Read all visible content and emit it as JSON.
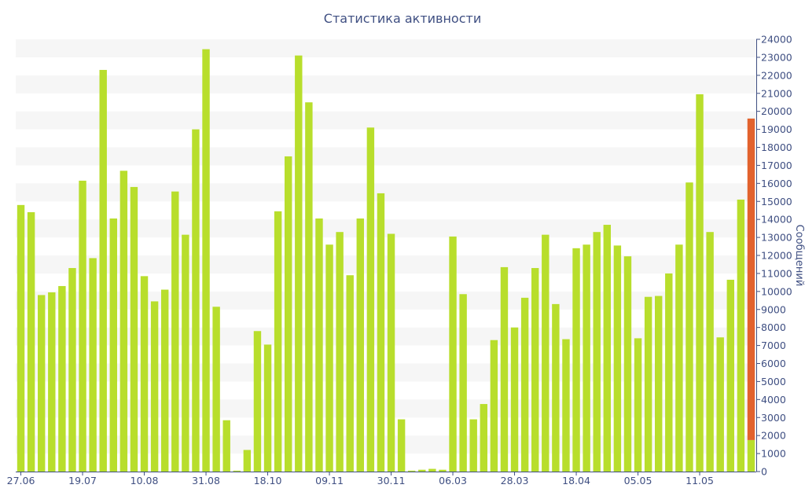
{
  "chart_data": {
    "type": "bar",
    "title": "Статистика активности",
    "xlabel": "",
    "ylabel": "Сообщений",
    "ylim": [
      0,
      24000
    ],
    "y_ticks": [
      0,
      1000,
      2000,
      3000,
      4000,
      5000,
      6000,
      7000,
      8000,
      9000,
      10000,
      11000,
      12000,
      13000,
      14000,
      15000,
      16000,
      17000,
      18000,
      19000,
      20000,
      21000,
      22000,
      23000,
      24000
    ],
    "y_axis_side": "right",
    "grid": "horizontal bands",
    "x_tick_labels": [
      {
        "index": 0,
        "label": "27.06"
      },
      {
        "index": 6,
        "label": "19.07"
      },
      {
        "index": 12,
        "label": "10.08"
      },
      {
        "index": 18,
        "label": "31.08"
      },
      {
        "index": 24,
        "label": "18.10"
      },
      {
        "index": 30,
        "label": "09.11"
      },
      {
        "index": 36,
        "label": "30.11"
      },
      {
        "index": 42,
        "label": "06.03"
      },
      {
        "index": 48,
        "label": "28.03"
      },
      {
        "index": 54,
        "label": "18.04"
      },
      {
        "index": 60,
        "label": "05.05"
      },
      {
        "index": 66,
        "label": "11.05"
      }
    ],
    "series": [
      {
        "values": [
          14800,
          14400,
          9800,
          9950,
          10300,
          11300,
          16150,
          11850,
          22300,
          14050,
          16700,
          15800,
          10850,
          9450,
          10100,
          15550,
          13150,
          19000,
          23450,
          9150,
          2850,
          50,
          1200,
          7800,
          7050,
          14450,
          17500,
          23100,
          20500,
          14050,
          12600,
          13300,
          10900,
          14050,
          19100,
          15450,
          13200,
          2900,
          50,
          100,
          150,
          100,
          13050,
          9850,
          2900,
          3750,
          7300,
          11350,
          8000,
          9650,
          11300,
          13150,
          9300,
          7350,
          12400,
          12600,
          13300,
          13700,
          12550,
          11950,
          7400,
          9700,
          9750,
          11000,
          12600,
          16050,
          20950,
          13300,
          7450,
          10650,
          15100,
          1750
        ]
      },
      {
        "values": [
          0,
          0,
          0,
          0,
          0,
          0,
          0,
          0,
          0,
          0,
          0,
          0,
          0,
          0,
          0,
          0,
          0,
          0,
          0,
          0,
          0,
          0,
          0,
          0,
          0,
          0,
          0,
          0,
          0,
          0,
          0,
          0,
          0,
          0,
          0,
          0,
          0,
          0,
          0,
          0,
          0,
          0,
          0,
          0,
          0,
          0,
          0,
          0,
          0,
          0,
          0,
          0,
          0,
          0,
          0,
          0,
          0,
          0,
          0,
          0,
          0,
          0,
          0,
          0,
          0,
          0,
          0,
          0,
          0,
          0,
          0,
          17850
        ]
      }
    ],
    "colors": {
      "series_1": "#b8de2c",
      "series_2": "#e2622d",
      "text": "#3f4f82",
      "band": "#f6f6f6"
    }
  }
}
